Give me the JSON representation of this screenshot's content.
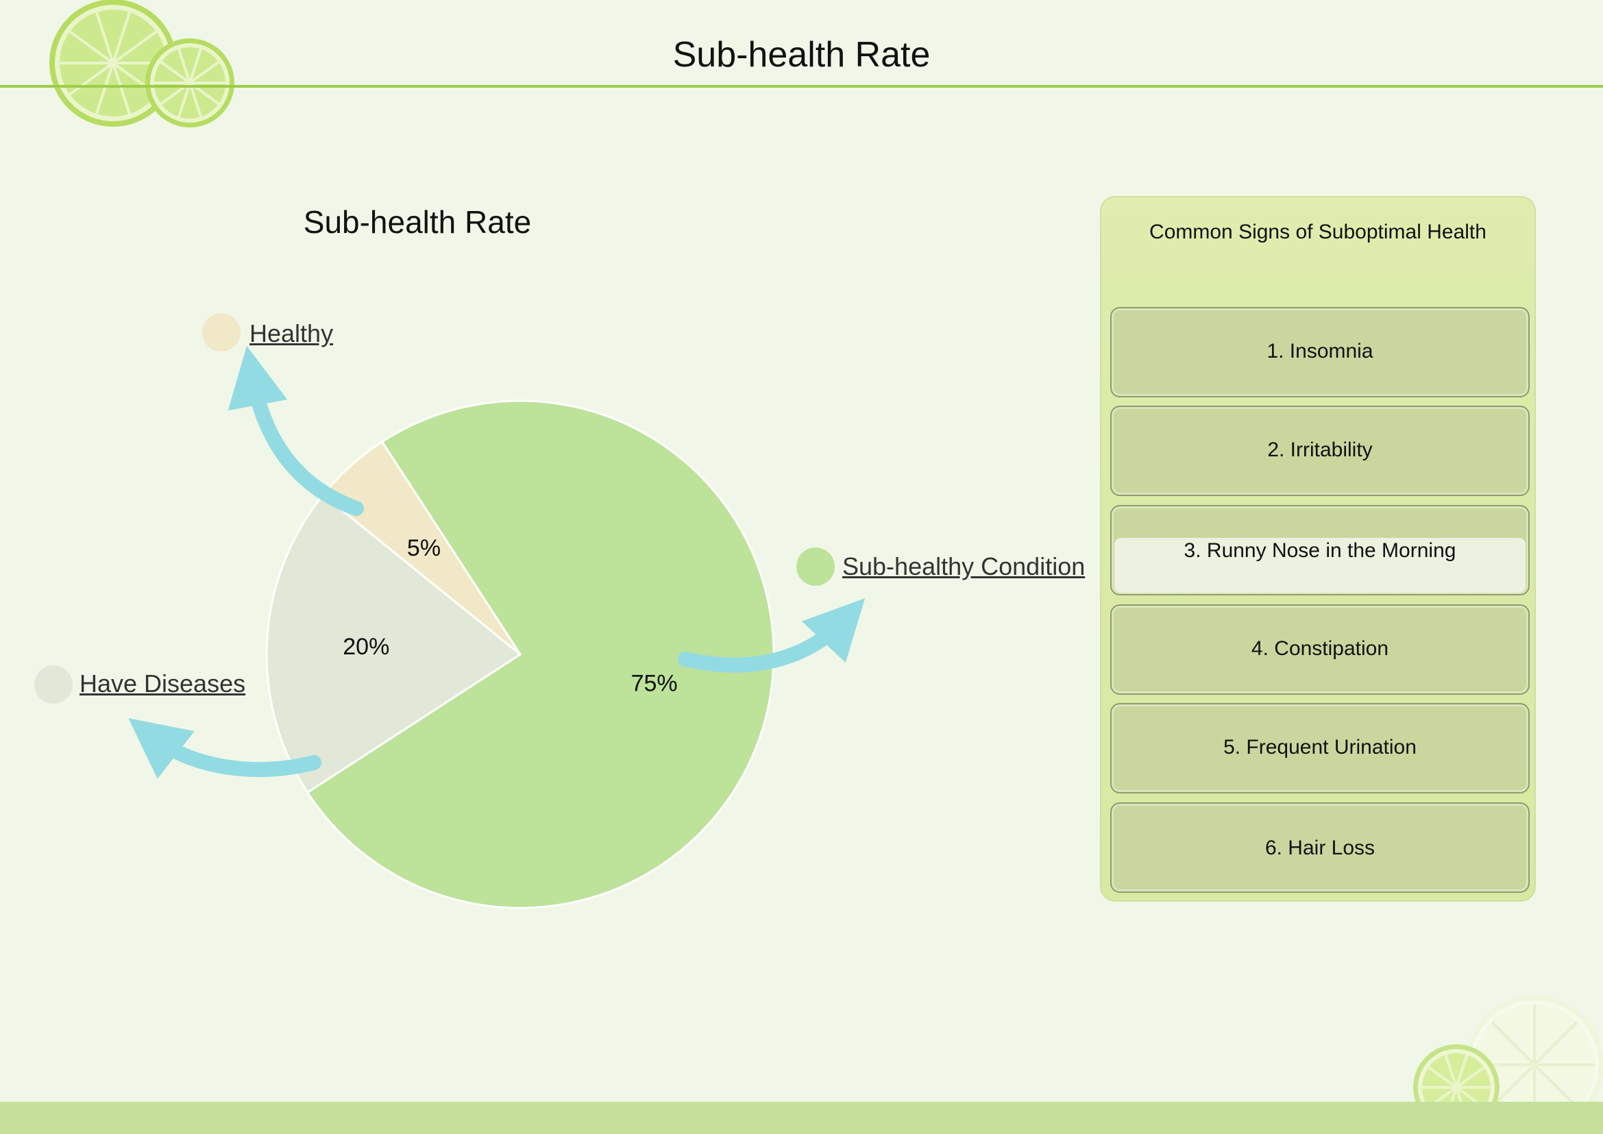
{
  "header": {
    "title": "Sub-health Rate"
  },
  "chart_data": {
    "type": "pie",
    "title": "Sub-health Rate",
    "slices": [
      {
        "label": "Sub-healthy Condition",
        "value": 75,
        "display": "75%",
        "color": "#bde29a"
      },
      {
        "label": "Have Diseases",
        "value": 20,
        "display": "20%",
        "color": "#e1e8d7"
      },
      {
        "label": "Healthy",
        "value": 5,
        "display": "5%",
        "color": "#f0e8c6"
      }
    ],
    "legend_placement": "around-pie",
    "arrow_color": "#93dbe2"
  },
  "signs_panel": {
    "title": "Common Signs of Suboptimal  Health",
    "items": [
      {
        "label": "1. Insomnia"
      },
      {
        "label": "2. Irritability"
      },
      {
        "label": "3. Runny Nose in the Morning"
      },
      {
        "label": "4. Constipation"
      },
      {
        "label": "5. Frequent Urination"
      },
      {
        "label": "6. Hair Loss"
      }
    ]
  },
  "colors": {
    "accent": "#9dcc4a",
    "background": "#f1f7e8",
    "panel": "#dcecaa",
    "item": "#c9d79f"
  }
}
